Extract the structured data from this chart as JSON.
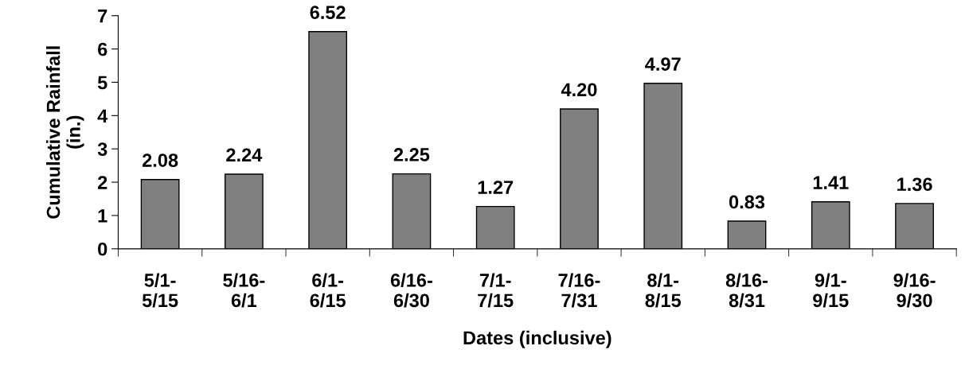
{
  "chart_data": {
    "type": "bar",
    "xlabel": "Dates (inclusive)",
    "ylabel": "Cumulative Rainfall\n(in.)",
    "categories": [
      "5/1-\n5/15",
      "5/16-\n6/1",
      "6/1-\n6/15",
      "6/16-\n6/30",
      "7/1-\n7/15",
      "7/16-\n7/31",
      "8/1-\n8/15",
      "8/16-\n8/31",
      "9/1-\n9/15",
      "9/16-\n9/30"
    ],
    "values": [
      2.08,
      2.24,
      6.52,
      2.25,
      1.27,
      4.2,
      4.97,
      0.83,
      1.41,
      1.36
    ],
    "value_labels": [
      "2.08",
      "2.24",
      "6.52",
      "2.25",
      "1.27",
      "4.20",
      "4.97",
      "0.83",
      "1.41",
      "1.36"
    ],
    "color": "#808080",
    "ylim": [
      0,
      7
    ],
    "yticks": [
      0,
      1,
      2,
      3,
      4,
      5,
      6,
      7
    ],
    "grid": false,
    "legend": false
  }
}
